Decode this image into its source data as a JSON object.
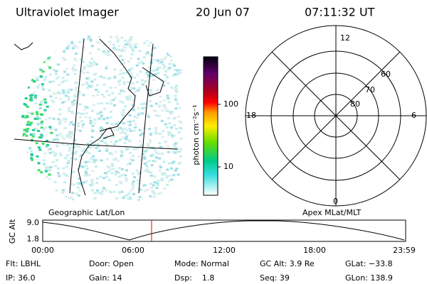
{
  "header": {
    "title": "Ultraviolet Imager",
    "date": "20 Jun 07",
    "time": "07:11:32 UT"
  },
  "colorbar": {
    "label": "photon cm⁻²s⁻¹",
    "ticks": [
      "100",
      "10"
    ]
  },
  "polar": {
    "mlt_labels": [
      "12",
      "18",
      "6",
      "0"
    ],
    "lat_labels": [
      "60",
      "70",
      "80"
    ]
  },
  "panel_labels": {
    "left": "Geographic Lat/Lon",
    "right": "Apex MLat/MLT"
  },
  "timeline": {
    "axis_label": "GC Alt",
    "y_labels": [
      "9.0",
      "1.8"
    ],
    "x_labels": [
      "00:00",
      "06:00",
      "12:00",
      "18:00",
      "23:59"
    ]
  },
  "footer": [
    [
      "Flt: LBHL",
      "IP: 36.0"
    ],
    [
      "Door: Open",
      "Gain: 14"
    ],
    [
      "Mode: Normal",
      "Dsp:    1.8"
    ],
    [
      "GC Alt: 3.9 Re",
      "Seq: 39"
    ],
    [
      "GLat: −33.8",
      "GLon: 138.9"
    ]
  ]
}
